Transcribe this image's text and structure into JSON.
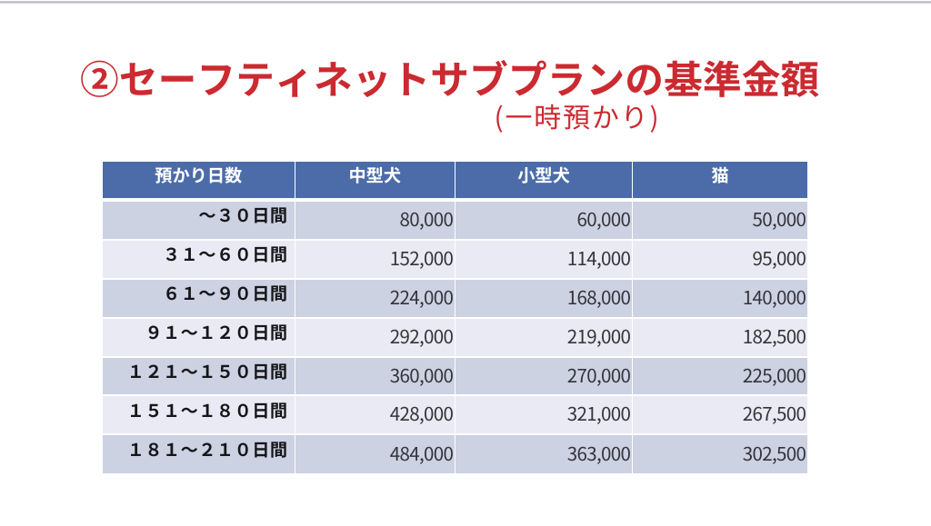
{
  "slide": {
    "title": "②セーフティネットサブプランの基準金額",
    "subtitle": "(一時預かり)",
    "colors": {
      "title_red": "#cb2a30",
      "header_blue": "#4b6ca8",
      "row_dark": "#ccd2e2",
      "row_light": "#e9eaf3"
    }
  },
  "table": {
    "columns": [
      "預かり日数",
      "中型犬",
      "小型犬",
      "猫"
    ],
    "rows": [
      {
        "label": "～３０日間",
        "values": [
          "80,000",
          "60,000",
          "50,000"
        ]
      },
      {
        "label": "３１～６０日間",
        "values": [
          "152,000",
          "114,000",
          "95,000"
        ]
      },
      {
        "label": "６１～９０日間",
        "values": [
          "224,000",
          "168,000",
          "140,000"
        ]
      },
      {
        "label": "９１～１２０日間",
        "values": [
          "292,000",
          "219,000",
          "182,500"
        ]
      },
      {
        "label": "１２１～１５０日間",
        "values": [
          "360,000",
          "270,000",
          "225,000"
        ]
      },
      {
        "label": "１５１～１８０日間",
        "values": [
          "428,000",
          "321,000",
          "267,500"
        ]
      },
      {
        "label": "１８１～２１０日間",
        "values": [
          "484,000",
          "363,000",
          "302,500"
        ]
      }
    ]
  }
}
